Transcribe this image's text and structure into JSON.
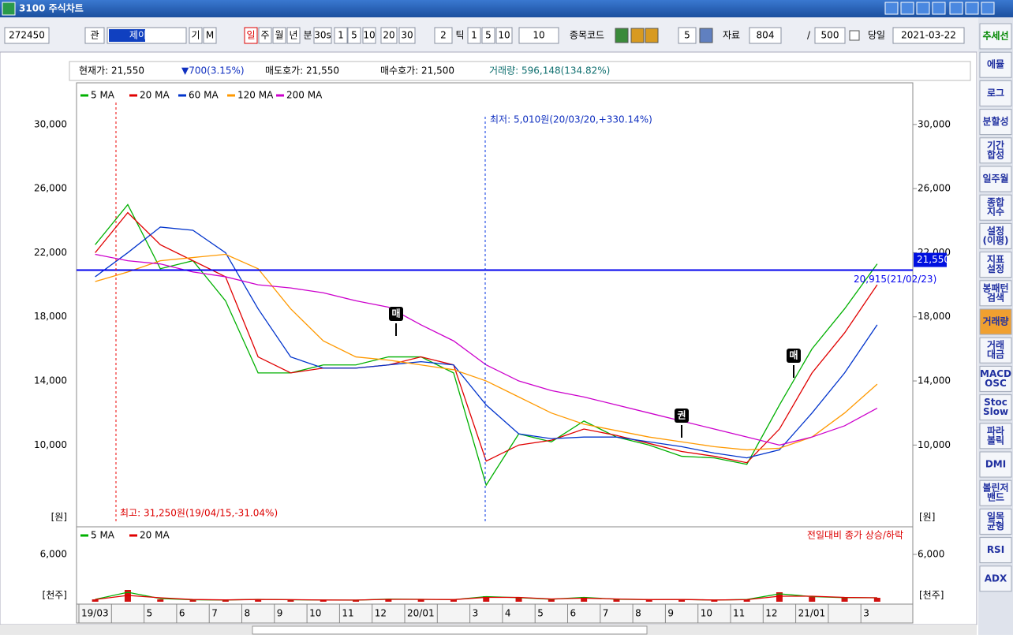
{
  "window": {
    "title": "3100 주식차트"
  },
  "toolbar": {
    "code": "272450",
    "search": "관",
    "name": "제이에이",
    "buttons": [
      "기",
      "M"
    ],
    "periods": [
      "일",
      "주",
      "월",
      "년",
      "분",
      "30s",
      "1",
      "5",
      "10",
      "20",
      "30"
    ],
    "tick_count": "2",
    "tick": "틱",
    "tick_options": [
      "1",
      "5",
      "10"
    ],
    "tick_value": "10",
    "code_label": "종목코드",
    "step": "5",
    "data_label": "자료",
    "data_count": "804",
    "slash": "/",
    "display_count": "500",
    "today": "당일",
    "date": "2021-03-22"
  },
  "sidebar": [
    [
      "추세선"
    ],
    [
      "에뮬"
    ],
    [
      "로그"
    ],
    [
      "분할성"
    ],
    [
      "기간",
      "합성"
    ],
    [
      "일주월"
    ],
    [
      "종합",
      "지수"
    ],
    [
      "설정",
      "(이평)"
    ],
    [
      "지표",
      "설정"
    ],
    [
      "봉패턴",
      "검색"
    ],
    [
      "거래량"
    ],
    [
      "거래",
      "대금"
    ],
    [
      "MACD",
      "OSC"
    ],
    [
      "Stoc",
      "Slow"
    ],
    [
      "파라",
      "볼릭"
    ],
    [
      "DMI"
    ],
    [
      "볼린저",
      "밴드"
    ],
    [
      "일목",
      "균형"
    ],
    [
      "RSI"
    ],
    [
      "ADX"
    ]
  ],
  "chart_data": [
    {
      "type": "line",
      "info": [
        "현재가: 21,550",
        "▼700(3.15%)",
        "매도호가: 21,550",
        "매수호가: 21,500",
        "거래량: 596,148(134.82%)"
      ],
      "categories": [
        "19/03",
        null,
        "5",
        "6",
        "7",
        "8",
        "9",
        "10",
        "11",
        "12",
        "20/01",
        null,
        "3",
        "4",
        "5",
        "6",
        "7",
        "8",
        "9",
        "10",
        "11",
        "12",
        "21/01",
        null,
        "3"
      ],
      "series": [
        {
          "name": "5 MA",
          "color": "#00b000",
          "values": [
            22500,
            25000,
            21000,
            21500,
            19000,
            14500,
            14500,
            15000,
            15000,
            15500,
            15500,
            14500,
            7500,
            10700,
            10200,
            11500,
            10500,
            10000,
            9300,
            9200,
            8800,
            12500,
            16000,
            18500,
            21300
          ]
        },
        {
          "name": "20 MA",
          "color": "#e00000",
          "values": [
            22000,
            24500,
            22500,
            21500,
            20500,
            15500,
            14500,
            14800,
            14800,
            15000,
            15500,
            15000,
            9000,
            10000,
            10300,
            11000,
            10600,
            10100,
            9600,
            9300,
            8900,
            11000,
            14500,
            17000,
            20000
          ]
        },
        {
          "name": "60 MA",
          "color": "#0033cc",
          "values": [
            20500,
            22000,
            23600,
            23400,
            22000,
            18500,
            15500,
            14800,
            14800,
            15000,
            15200,
            15000,
            12500,
            10700,
            10400,
            10500,
            10500,
            10200,
            9900,
            9500,
            9200,
            9700,
            12000,
            14500,
            17500
          ]
        },
        {
          "name": "120 MA",
          "color": "#ff9900",
          "values": [
            20200,
            20800,
            21500,
            21700,
            21900,
            21000,
            18500,
            16500,
            15500,
            15300,
            15000,
            14700,
            14000,
            13000,
            12000,
            11300,
            10900,
            10500,
            10200,
            9900,
            9700,
            9800,
            10500,
            12000,
            13800
          ]
        },
        {
          "name": "200 MA",
          "color": "#cc00cc",
          "values": [
            21900,
            21500,
            21300,
            20800,
            20500,
            20000,
            19800,
            19500,
            19000,
            18600,
            17500,
            16500,
            15000,
            14000,
            13400,
            13000,
            12500,
            12000,
            11500,
            11000,
            10500,
            10000,
            10500,
            11200,
            12300
          ]
        }
      ],
      "ylim": [
        4900,
        32600
      ],
      "yticks": [
        {
          "value": 10000,
          "label": "10,000"
        },
        {
          "value": 14000,
          "label": "14,000"
        },
        {
          "value": 18000,
          "label": "18,000"
        },
        {
          "value": 22000,
          "label": "22,000"
        },
        {
          "value": 26000,
          "label": "26,000"
        },
        {
          "value": 30000,
          "label": "30,000"
        }
      ],
      "unit": "[원]",
      "level": {
        "value": 20915,
        "label": "20,915(21/02/23)",
        "color": "#0000ee"
      },
      "current": {
        "value": 21550,
        "label": "21,550"
      },
      "high_note": "최고: 31,250원(19/04/15,-31.04%)",
      "low_note": "최저: 5,010원(20/03/20,+330.14%)",
      "signals": [
        "매",
        "매",
        "권"
      ]
    },
    {
      "type": "bar",
      "values": [
        300,
        1500,
        300,
        250,
        200,
        300,
        250,
        200,
        200,
        350,
        300,
        250,
        700,
        500,
        300,
        600,
        300,
        250,
        300,
        200,
        300,
        1200,
        600,
        500,
        500
      ],
      "color": "#d01010",
      "series": [
        {
          "name": "5 MA",
          "color": "#00b000",
          "values": [
            300,
            1200,
            400,
            250,
            220,
            300,
            250,
            210,
            200,
            330,
            300,
            260,
            650,
            520,
            320,
            550,
            320,
            260,
            290,
            210,
            280,
            1000,
            650,
            520,
            500
          ]
        },
        {
          "name": "20 MA",
          "color": "#e00000",
          "values": [
            280,
            800,
            500,
            280,
            230,
            280,
            260,
            220,
            210,
            300,
            300,
            270,
            550,
            550,
            350,
            450,
            350,
            270,
            280,
            220,
            260,
            700,
            700,
            550,
            500
          ]
        }
      ],
      "note": "전일대비 종가 상승/하락",
      "ylim": [
        0,
        9100
      ],
      "yticks": [
        {
          "value": 6000,
          "label": "6,000"
        }
      ],
      "unit": "[천주]"
    }
  ]
}
